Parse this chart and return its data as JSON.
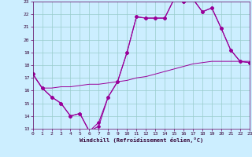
{
  "xlabel": "Windchill (Refroidissement éolien,°C)",
  "xlim": [
    0,
    23
  ],
  "ylim": [
    13,
    23
  ],
  "yticks": [
    13,
    14,
    15,
    16,
    17,
    18,
    19,
    20,
    21,
    22,
    23
  ],
  "xticks": [
    0,
    1,
    2,
    3,
    4,
    5,
    6,
    7,
    8,
    9,
    10,
    11,
    12,
    13,
    14,
    15,
    16,
    17,
    18,
    19,
    20,
    21,
    22,
    23
  ],
  "bg_color": "#cceeff",
  "grid_color": "#99cccc",
  "line_color": "#990099",
  "line1_x": [
    0,
    1,
    2,
    3,
    4,
    5,
    6,
    7,
    8,
    9,
    10,
    11,
    12,
    13,
    14,
    15,
    16,
    17,
    18,
    19,
    20,
    21,
    22,
    23
  ],
  "line1_y": [
    17.3,
    16.2,
    15.5,
    15.0,
    14.0,
    14.2,
    12.8,
    13.2,
    15.5,
    16.7,
    19.0,
    21.8,
    21.7,
    21.7,
    21.7,
    23.2,
    23.0,
    23.2,
    22.2,
    22.5,
    20.9,
    19.2,
    18.3,
    18.2
  ],
  "line2_x": [
    0,
    1,
    2,
    3,
    4,
    5,
    6,
    7,
    8,
    9,
    10,
    11,
    12,
    13,
    14,
    15,
    16,
    17,
    18,
    19,
    20,
    21,
    22,
    23
  ],
  "line2_y": [
    17.3,
    16.2,
    16.2,
    16.3,
    16.3,
    16.4,
    16.5,
    16.5,
    16.6,
    16.7,
    16.8,
    17.0,
    17.1,
    17.3,
    17.5,
    17.7,
    17.9,
    18.1,
    18.2,
    18.3,
    18.3,
    18.3,
    18.3,
    18.3
  ],
  "line3_x": [
    0,
    1,
    2,
    3,
    4,
    5,
    6,
    7,
    8,
    9,
    10,
    11,
    12,
    13,
    14,
    15,
    16,
    17,
    18,
    19,
    20,
    21,
    22,
    23
  ],
  "line3_y": [
    17.3,
    16.2,
    15.5,
    15.0,
    14.0,
    14.2,
    12.8,
    13.5,
    15.5,
    16.7,
    19.0,
    21.8,
    21.7,
    21.7,
    21.7,
    23.2,
    23.0,
    23.2,
    22.2,
    22.5,
    20.9,
    19.2,
    18.3,
    18.2
  ]
}
